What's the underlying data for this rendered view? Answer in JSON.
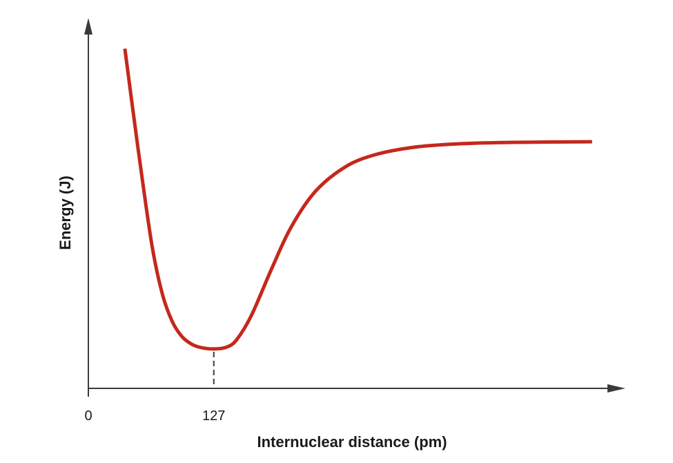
{
  "chart_data": {
    "type": "line",
    "title": "",
    "xlabel": "Internuclear distance (pm)",
    "ylabel": "Energy (J)",
    "x_ticks": [
      "0",
      "127"
    ],
    "minimum_x": 127,
    "grid": false,
    "legend": "none",
    "series": [
      {
        "color": "#c4281c",
        "points": [
          {
            "x": 37,
            "y": 0.99
          },
          {
            "x": 45,
            "y": 0.79
          },
          {
            "x": 55,
            "y": 0.55
          },
          {
            "x": 65,
            "y": 0.33
          },
          {
            "x": 75,
            "y": 0.18
          },
          {
            "x": 85,
            "y": 0.09
          },
          {
            "x": 95,
            "y": 0.04
          },
          {
            "x": 105,
            "y": 0.015
          },
          {
            "x": 115,
            "y": 0.004
          },
          {
            "x": 127,
            "y": 0.0
          },
          {
            "x": 140,
            "y": 0.006
          },
          {
            "x": 150,
            "y": 0.03
          },
          {
            "x": 165,
            "y": 0.11
          },
          {
            "x": 185,
            "y": 0.26
          },
          {
            "x": 205,
            "y": 0.4
          },
          {
            "x": 230,
            "y": 0.52
          },
          {
            "x": 260,
            "y": 0.6
          },
          {
            "x": 290,
            "y": 0.64
          },
          {
            "x": 330,
            "y": 0.665
          },
          {
            "x": 380,
            "y": 0.677
          },
          {
            "x": 430,
            "y": 0.681
          },
          {
            "x": 510,
            "y": 0.683
          }
        ]
      }
    ],
    "xlim": [
      0,
      580
    ],
    "ylim": [
      -0.13,
      1.0
    ]
  }
}
